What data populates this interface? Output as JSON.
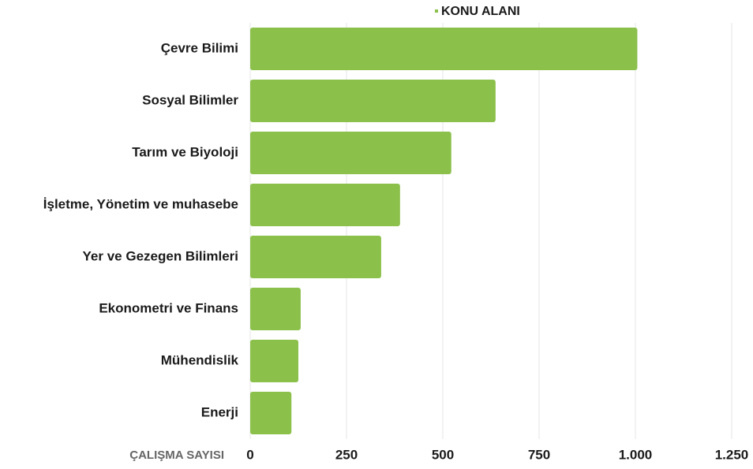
{
  "chart_data": {
    "type": "barh",
    "series": [
      {
        "name": "KONU ALANI",
        "color": "#8bc04a",
        "values": [
          1005,
          637,
          522,
          389,
          340,
          131,
          125,
          107
        ]
      }
    ],
    "categories": [
      "Çevre Bilimi",
      "Sosyal Bilimler",
      "Tarım ve Biyoloji",
      "İşletme, Yönetim ve muhasebe",
      "Yer ve Gezegen Bilimleri",
      "Ekonometri ve Finans",
      "Mühendislik",
      "Enerji"
    ],
    "x_label": "ÇALIŞMA SAYISI",
    "xlim": [
      0,
      1250
    ],
    "xticks": [
      0,
      250,
      500,
      750,
      {
        "value": 1000,
        "label": "1.000"
      },
      {
        "value": 1250,
        "label": "1.250"
      }
    ],
    "grid": true,
    "legend": "top"
  }
}
